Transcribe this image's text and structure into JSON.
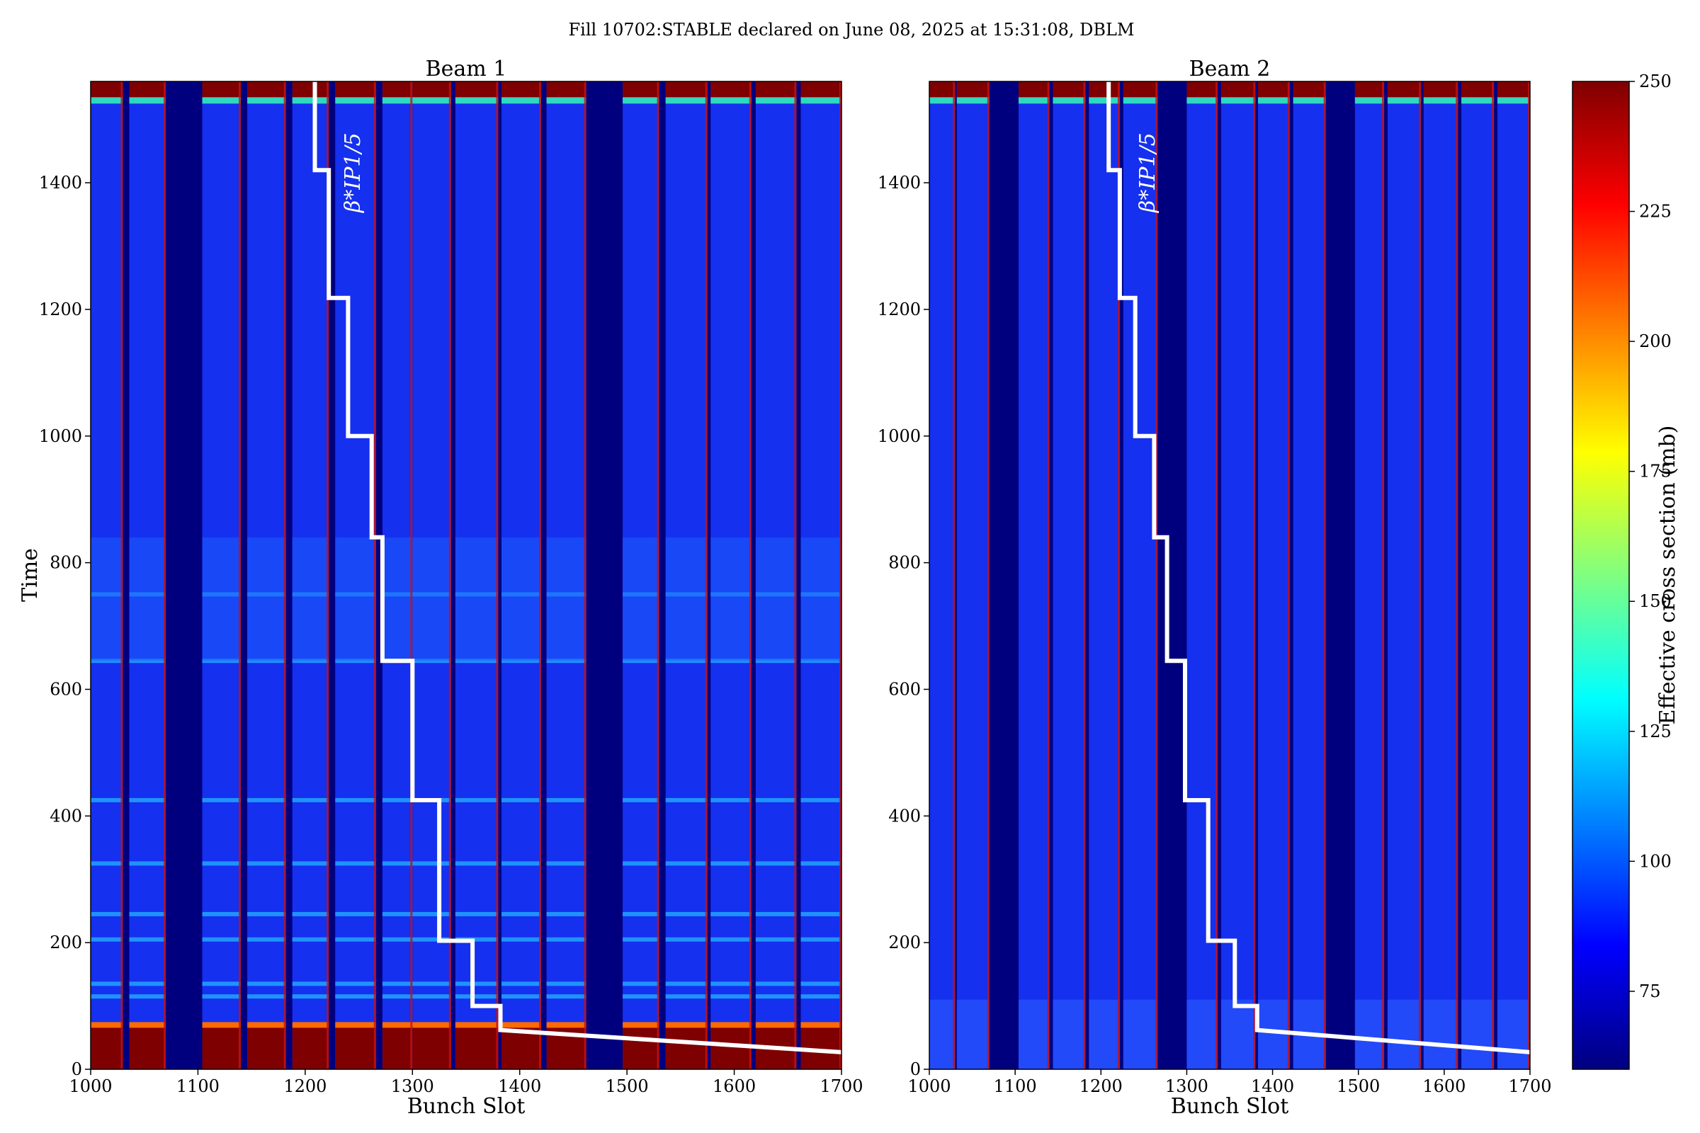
{
  "figure": {
    "suptitle": "Fill 10702:STABLE declared on June 08, 2025 at 15:31:08, DBLM"
  },
  "chart_data": [
    {
      "type": "heatmap",
      "title": "Beam 1",
      "xlabel": "Bunch Slot",
      "ylabel": "Time",
      "xlim": [
        1000,
        1700
      ],
      "ylim": [
        0,
        1560
      ],
      "xticks": [
        "1000",
        "1100",
        "1200",
        "1300",
        "1400",
        "1500",
        "1600",
        "1700"
      ],
      "yticks": [
        "0",
        "200",
        "400",
        "600",
        "800",
        "1000",
        "1200",
        "1400"
      ],
      "filled_trains": [
        [
          1000,
          1030
        ],
        [
          1036,
          1070
        ],
        [
          1104,
          1140
        ],
        [
          1146,
          1182
        ],
        [
          1188,
          1222
        ],
        [
          1228,
          1266
        ],
        [
          1272,
          1300
        ],
        [
          1300,
          1336
        ],
        [
          1340,
          1380
        ],
        [
          1383,
          1420
        ],
        [
          1425,
          1462
        ],
        [
          1496,
          1530
        ],
        [
          1536,
          1575
        ],
        [
          1578,
          1616
        ],
        [
          1620,
          1658
        ],
        [
          1662,
          1700
        ]
      ],
      "low_value_trains": [
        [
          1266,
          1300
        ]
      ],
      "bright_rows": [
        750,
        645,
        425,
        325,
        245,
        205,
        135,
        115
      ],
      "high_section_below": 70,
      "annotation": "β*IP1/5",
      "beta_star_line": {
        "x": [
          1209,
          1209,
          1222,
          1222,
          1240,
          1240,
          1262,
          1262,
          1272,
          1272,
          1300,
          1300,
          1325,
          1325,
          1356,
          1356,
          1382,
          1382,
          1700
        ],
        "y": [
          1560,
          1420,
          1420,
          1218,
          1218,
          1000,
          1000,
          840,
          840,
          645,
          645,
          425,
          425,
          203,
          203,
          100,
          100,
          62,
          27
        ]
      }
    },
    {
      "type": "heatmap",
      "title": "Beam 2",
      "xlabel": "Bunch Slot",
      "ylabel": "",
      "xlim": [
        1000,
        1700
      ],
      "ylim": [
        0,
        1560
      ],
      "xticks": [
        "1000",
        "1100",
        "1200",
        "1300",
        "1400",
        "1500",
        "1600",
        "1700"
      ],
      "yticks": [
        "0",
        "200",
        "400",
        "600",
        "800",
        "1000",
        "1200",
        "1400"
      ],
      "filled_trains": [
        [
          1000,
          1030
        ],
        [
          1032,
          1070
        ],
        [
          1104,
          1140
        ],
        [
          1144,
          1182
        ],
        [
          1186,
          1222
        ],
        [
          1226,
          1266
        ],
        [
          1300,
          1336
        ],
        [
          1340,
          1380
        ],
        [
          1383,
          1420
        ],
        [
          1424,
          1462
        ],
        [
          1496,
          1530
        ],
        [
          1534,
          1573
        ],
        [
          1576,
          1616
        ],
        [
          1620,
          1658
        ],
        [
          1662,
          1700
        ]
      ],
      "bright_rows": [],
      "low_band_below": 110,
      "annotation": "β*IP1/5",
      "beta_star_line": {
        "x": [
          1209,
          1209,
          1222,
          1222,
          1240,
          1240,
          1262,
          1262,
          1277,
          1277,
          1298,
          1298,
          1325,
          1325,
          1356,
          1356,
          1382,
          1382,
          1700
        ],
        "y": [
          1560,
          1420,
          1420,
          1218,
          1218,
          1000,
          1000,
          840,
          840,
          645,
          645,
          425,
          425,
          203,
          203,
          100,
          100,
          62,
          27
        ]
      }
    }
  ],
  "colorbar": {
    "label": "Effective cross section (mb)",
    "range": [
      60,
      250
    ],
    "ticks": [
      "75",
      "100",
      "125",
      "150",
      "175",
      "200",
      "225",
      "250"
    ],
    "colors": [
      "#00007f",
      "#0000ff",
      "#0080ff",
      "#00ffff",
      "#80ff80",
      "#ffff00",
      "#ff8000",
      "#ff0000",
      "#7f0000"
    ]
  },
  "colors": {
    "background_gap": "#00007f",
    "train_body": "#1530ee",
    "train_bright": "#21a5ff",
    "high": "#7f0000",
    "overlay_line": "#ffffff"
  }
}
